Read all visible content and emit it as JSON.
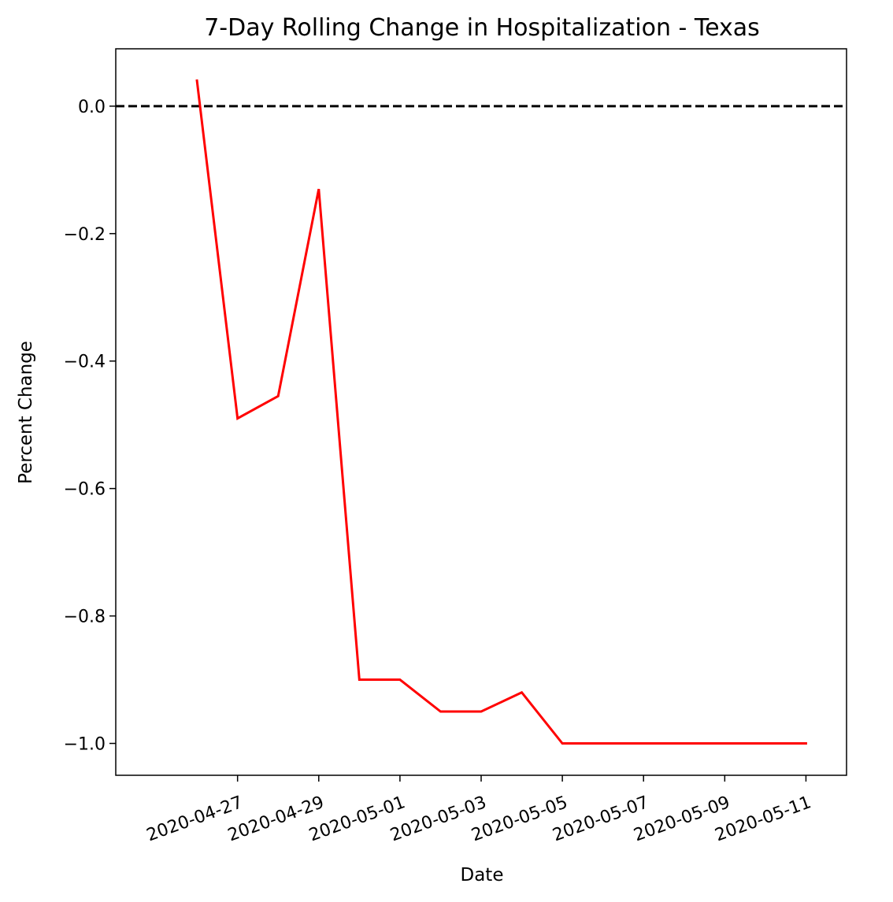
{
  "chart_data": {
    "type": "line",
    "title": "7-Day Rolling Change in Hospitalization - Texas",
    "xlabel": "Date",
    "ylabel": "Percent Change",
    "x_type": "date",
    "xlim": [
      "2020-04-24",
      "2020-05-12"
    ],
    "ylim": [
      -1.05,
      0.09
    ],
    "yticks": [
      0.0,
      -0.2,
      -0.4,
      -0.6,
      -0.8,
      -1.0
    ],
    "ytick_labels": [
      "0.0",
      "−0.2",
      "−0.4",
      "−0.6",
      "−0.8",
      "−1.0"
    ],
    "xticks": [
      "2020-04-27",
      "2020-04-29",
      "2020-05-01",
      "2020-05-03",
      "2020-05-05",
      "2020-05-07",
      "2020-05-09",
      "2020-05-11"
    ],
    "xtick_labels": [
      "2020-04-27",
      "2020-04-29",
      "2020-05-01",
      "2020-05-03",
      "2020-05-05",
      "2020-05-07",
      "2020-05-09",
      "2020-05-11"
    ],
    "xtick_rotation_deg": 20,
    "grid": false,
    "reference_line": {
      "y": 0.0,
      "color": "#000000",
      "style": "dashed"
    },
    "series": [
      {
        "color": "#ff0000",
        "x": [
          "2020-04-26",
          "2020-04-27",
          "2020-04-28",
          "2020-04-29",
          "2020-04-30",
          "2020-05-01",
          "2020-05-02",
          "2020-05-03",
          "2020-05-04",
          "2020-05-05",
          "2020-05-06",
          "2020-05-07",
          "2020-05-08",
          "2020-05-09",
          "2020-05-10",
          "2020-05-11"
        ],
        "y": [
          0.04,
          -0.49,
          -0.455,
          -0.13,
          -0.9,
          -0.9,
          -0.95,
          -0.95,
          -0.92,
          -1.0,
          -1.0,
          -1.0,
          -1.0,
          -1.0,
          -1.0,
          -1.0
        ]
      }
    ]
  }
}
